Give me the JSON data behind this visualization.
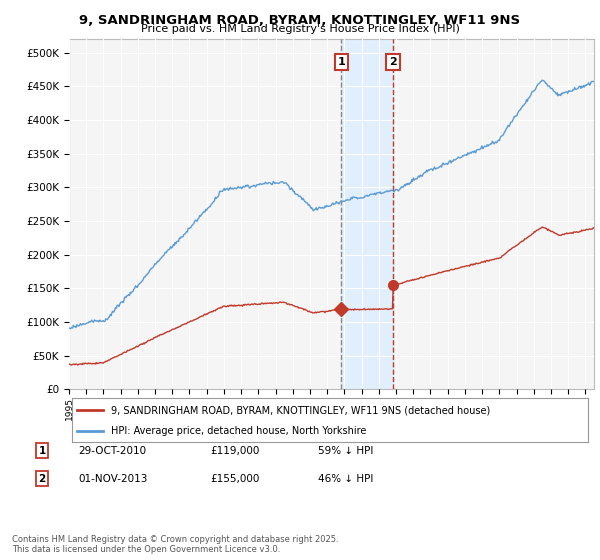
{
  "title": "9, SANDRINGHAM ROAD, BYRAM, KNOTTINGLEY, WF11 9NS",
  "subtitle": "Price paid vs. HM Land Registry's House Price Index (HPI)",
  "ylim": [
    0,
    520000
  ],
  "yticks": [
    0,
    50000,
    100000,
    150000,
    200000,
    250000,
    300000,
    350000,
    400000,
    450000,
    500000
  ],
  "ytick_labels": [
    "£0",
    "£50K",
    "£100K",
    "£150K",
    "£200K",
    "£250K",
    "£300K",
    "£350K",
    "£400K",
    "£450K",
    "£500K"
  ],
  "hpi_color": "#5b9bd5",
  "price_color": "#c0392b",
  "sale1_x": 2010.83,
  "sale1_price": 119000,
  "sale1_date": "29-OCT-2010",
  "sale1_hpi_pct": "59% ↓ HPI",
  "sale2_x": 2013.83,
  "sale2_price": 155000,
  "sale2_date": "01-NOV-2013",
  "sale2_hpi_pct": "46% ↓ HPI",
  "legend_line1": "9, SANDRINGHAM ROAD, BYRAM, KNOTTINGLEY, WF11 9NS (detached house)",
  "legend_line2": "HPI: Average price, detached house, North Yorkshire",
  "footer": "Contains HM Land Registry data © Crown copyright and database right 2025.\nThis data is licensed under the Open Government Licence v3.0.",
  "background_color": "#ffffff",
  "plot_bg_color": "#f5f5f5",
  "grid_color": "#ffffff",
  "shade_color": "#ddeeff"
}
